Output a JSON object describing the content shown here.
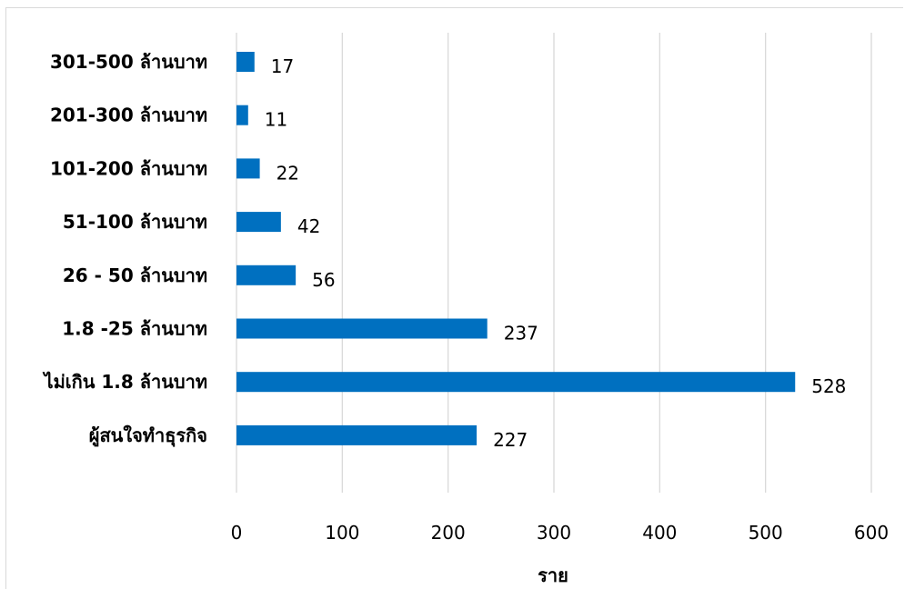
{
  "chart_data": {
    "type": "bar",
    "orientation": "horizontal",
    "categories": [
      "301-500 ล้านบาท",
      "201-300 ล้านบาท",
      "101-200 ล้านบาท",
      "51-100 ล้านบาท",
      "26 - 50 ล้านบาท",
      "1.8 -25 ล้านบาท",
      "ไม่เกิน 1.8 ล้านบาท",
      "ผู้สนใจทำธุรกิจ"
    ],
    "values": [
      17,
      11,
      22,
      42,
      56,
      237,
      528,
      227
    ],
    "title": "",
    "xlabel": "ราย",
    "ylabel": "",
    "xlim": [
      0,
      600
    ],
    "xticks": [
      "0",
      "100",
      "200",
      "300",
      "400",
      "500",
      "600"
    ],
    "grid": "vertical",
    "legend": "none",
    "bar_color": "#0070c0",
    "grid_color": "#d9d9d9"
  }
}
